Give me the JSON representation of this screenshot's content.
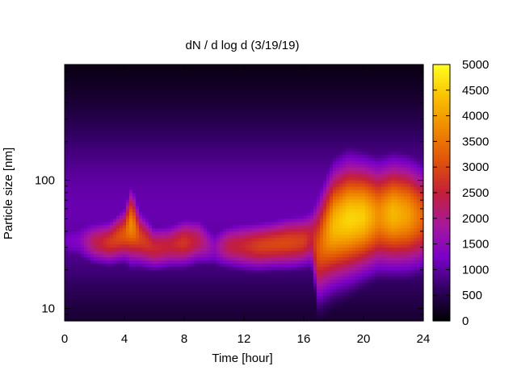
{
  "chart_data": {
    "type": "heatmap",
    "title": "dN / d log d (3/19/19)",
    "xlabel": "Time [hour]",
    "ylabel": "Particle size [nm]",
    "xlim": [
      0,
      24
    ],
    "x_ticks": [
      0,
      4,
      8,
      12,
      16,
      20,
      24
    ],
    "ylim": [
      8,
      800
    ],
    "y_scale": "log",
    "y_tick_labels": [
      {
        "value": 10,
        "label": "10"
      },
      {
        "value": 100,
        "label": "100"
      }
    ],
    "colorbar": {
      "min": 0,
      "max": 5000,
      "ticks": [
        0,
        500,
        1000,
        1500,
        2000,
        2500,
        3000,
        3500,
        4000,
        4500,
        5000
      ],
      "colormap": [
        "#000000",
        "#300060",
        "#7a00c8",
        "#a8189c",
        "#c41e3a",
        "#e0520a",
        "#f08800",
        "#f8c000",
        "#ffff20"
      ]
    },
    "grid": false,
    "times": [
      0,
      1,
      2,
      3,
      4,
      4.5,
      5,
      6,
      7,
      8,
      9,
      10,
      11,
      12,
      13,
      14,
      15,
      16,
      16.5,
      17,
      18,
      19,
      20,
      21,
      22,
      23,
      24
    ],
    "mode_diameter_nm": [
      34,
      34,
      33,
      33,
      38,
      45,
      36,
      30,
      31,
      33,
      34,
      30,
      31,
      31,
      31,
      32,
      33,
      34,
      36,
      30,
      44,
      50,
      52,
      53,
      55,
      54,
      52
    ],
    "mode_peak": [
      1200,
      1400,
      2300,
      2800,
      3200,
      3800,
      3000,
      2600,
      2500,
      2800,
      2300,
      1500,
      2400,
      2600,
      2900,
      3000,
      3000,
      2900,
      2500,
      3200,
      4300,
      4600,
      4500,
      3800,
      4300,
      4000,
      3300
    ],
    "mode_width_log10": [
      0.12,
      0.12,
      0.12,
      0.12,
      0.14,
      0.2,
      0.15,
      0.12,
      0.12,
      0.13,
      0.13,
      0.12,
      0.12,
      0.13,
      0.13,
      0.13,
      0.14,
      0.14,
      0.16,
      0.28,
      0.3,
      0.3,
      0.28,
      0.27,
      0.27,
      0.27,
      0.26
    ]
  }
}
